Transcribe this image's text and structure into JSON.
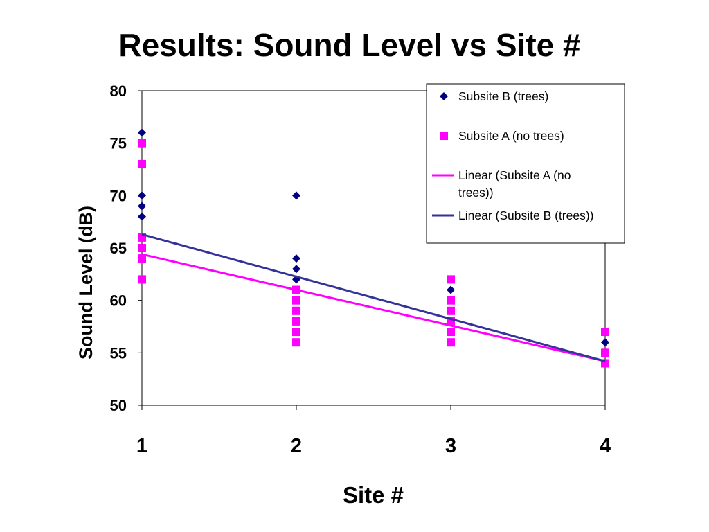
{
  "slide": {
    "title": "Results: Sound Level vs Site #"
  },
  "chart_data": {
    "type": "scatter",
    "title": "Results: Sound Level vs Site #",
    "xlabel": "Site #",
    "ylabel": "Sound Level (dB)",
    "xlim": [
      1,
      4
    ],
    "ylim": [
      50,
      80
    ],
    "x_ticks": [
      1,
      2,
      3,
      4
    ],
    "y_ticks": [
      50,
      55,
      60,
      65,
      70,
      75,
      80
    ],
    "grid": false,
    "legend_position": "top-right",
    "series": [
      {
        "name": "Subsite B (trees)",
        "marker": "diamond",
        "color": "#000080",
        "points": [
          [
            1,
            76
          ],
          [
            1,
            70
          ],
          [
            1,
            69
          ],
          [
            1,
            68
          ],
          [
            1,
            66
          ],
          [
            1,
            62
          ],
          [
            2,
            70
          ],
          [
            2,
            64
          ],
          [
            2,
            63
          ],
          [
            2,
            62
          ],
          [
            2,
            61
          ],
          [
            2,
            58
          ],
          [
            3,
            61
          ],
          [
            3,
            60
          ],
          [
            3,
            58
          ],
          [
            3,
            57
          ],
          [
            3,
            56
          ],
          [
            4,
            56
          ],
          [
            4,
            55
          ],
          [
            4,
            54
          ]
        ]
      },
      {
        "name": "Subsite A (no trees)",
        "marker": "square",
        "color": "#FF00FF",
        "points": [
          [
            1,
            75
          ],
          [
            1,
            73
          ],
          [
            1,
            66
          ],
          [
            1,
            65
          ],
          [
            1,
            64
          ],
          [
            1,
            62
          ],
          [
            2,
            61
          ],
          [
            2,
            60
          ],
          [
            2,
            59
          ],
          [
            2,
            58
          ],
          [
            2,
            57
          ],
          [
            2,
            56
          ],
          [
            3,
            62
          ],
          [
            3,
            60
          ],
          [
            3,
            59
          ],
          [
            3,
            58
          ],
          [
            3,
            57
          ],
          [
            3,
            56
          ],
          [
            4,
            57
          ],
          [
            4,
            55
          ],
          [
            4,
            54
          ]
        ]
      }
    ],
    "trendlines": [
      {
        "name": "Linear (Subsite A (no trees))",
        "color": "#FF00FF",
        "from": [
          1,
          64.4
        ],
        "to": [
          4,
          54.2
        ]
      },
      {
        "name": "Linear (Subsite B (trees))",
        "color": "#333399",
        "from": [
          1,
          66.3
        ],
        "to": [
          4,
          54.2
        ]
      }
    ],
    "legend": [
      {
        "label": "Subsite B (trees)",
        "symbol": "diamond",
        "color": "#000080"
      },
      {
        "label": "Subsite A (no trees)",
        "symbol": "square",
        "color": "#FF00FF"
      },
      {
        "label_lines": [
          "Linear (Subsite A (no",
          "trees))"
        ],
        "symbol": "line",
        "color": "#FF00FF"
      },
      {
        "label": "Linear (Subsite B (trees))",
        "symbol": "line",
        "color": "#333399"
      }
    ]
  }
}
